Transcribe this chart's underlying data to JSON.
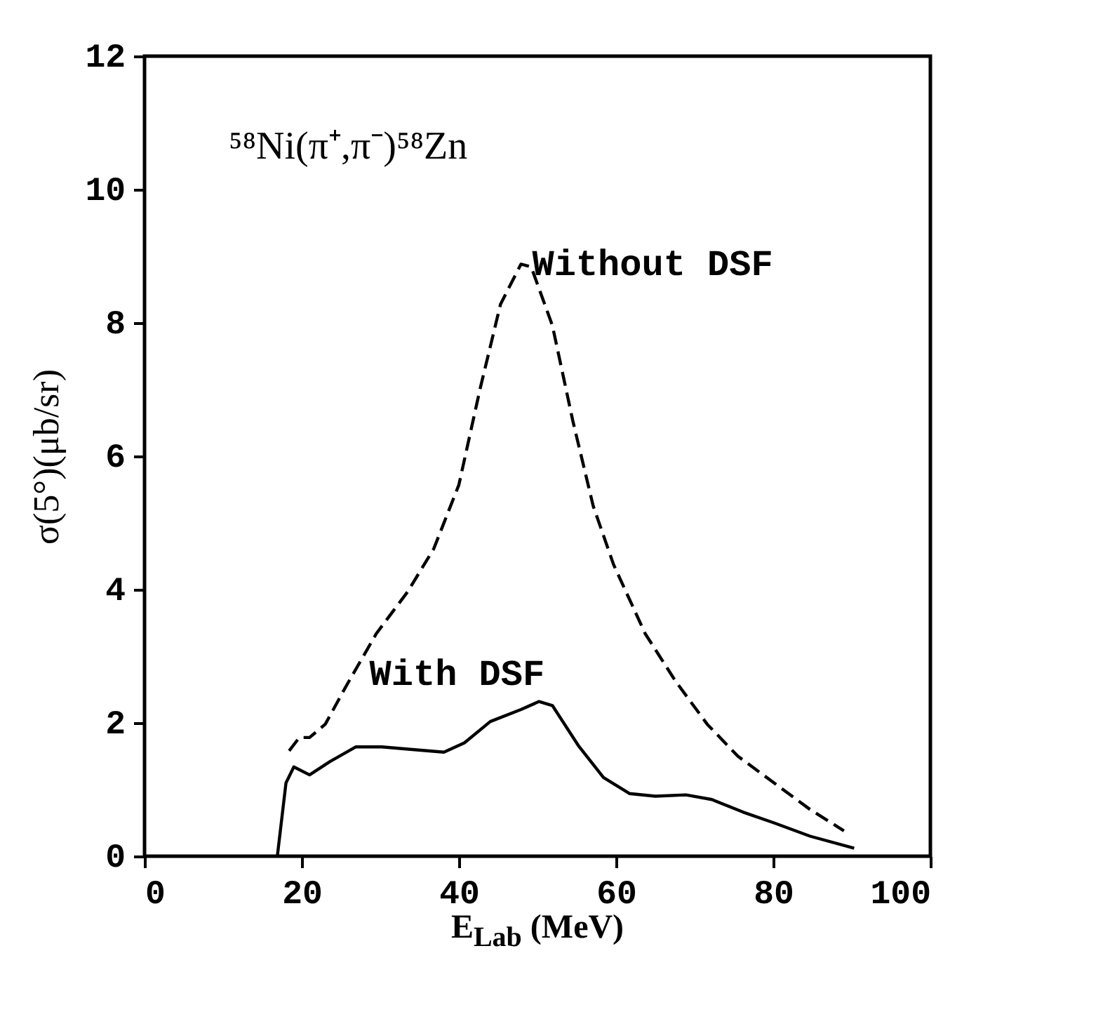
{
  "chart_data": {
    "type": "line",
    "xlabel": "E$_{Lab}$ (MeV)",
    "ylabel": "σ(5°)(μb/sr)",
    "annotations": [
      "⁵⁸Ni(π⁺,π⁻)⁵⁸Zn"
    ],
    "xlim": [
      0,
      100
    ],
    "ylim": [
      0,
      12
    ],
    "xticks": [
      0,
      20,
      40,
      60,
      80,
      100
    ],
    "yticks": [
      0,
      2,
      4,
      6,
      8,
      10,
      12
    ],
    "marker": "none",
    "series": [
      {
        "name": "Without DSF",
        "color": "#000000",
        "line_style": "dashed",
        "x": [
          18.4,
          19.7,
          21.0,
          23.0,
          25.6,
          29.5,
          33.5,
          36.8,
          40.0,
          42.7,
          45.3,
          47.9,
          49.2,
          51.9,
          54.5,
          57.1,
          59.7,
          63.7,
          67.6,
          71.6,
          75.5,
          80.1,
          84.7,
          89.0
        ],
        "values": [
          1.58,
          1.78,
          1.78,
          1.98,
          2.54,
          3.34,
          3.97,
          4.61,
          5.57,
          7.01,
          8.28,
          8.88,
          8.84,
          7.96,
          6.53,
          5.25,
          4.37,
          3.34,
          2.62,
          1.98,
          1.5,
          1.1,
          0.7,
          0.38
        ]
      },
      {
        "name": "With DSF",
        "color": "#000000",
        "line_style": "solid",
        "x": [
          16.9,
          18.0,
          19.0,
          21.0,
          23.6,
          26.9,
          30.2,
          34.1,
          38.1,
          40.7,
          44.0,
          47.9,
          50.2,
          51.9,
          55.2,
          58.4,
          61.7,
          65.0,
          68.9,
          72.2,
          76.2,
          80.1,
          84.7,
          90.3
        ],
        "values": [
          0,
          1.1,
          1.34,
          1.22,
          1.42,
          1.64,
          1.64,
          1.6,
          1.56,
          1.7,
          2.02,
          2.2,
          2.32,
          2.26,
          1.66,
          1.18,
          0.94,
          0.9,
          0.92,
          0.85,
          0.66,
          0.5,
          0.3,
          0.12
        ]
      }
    ]
  }
}
